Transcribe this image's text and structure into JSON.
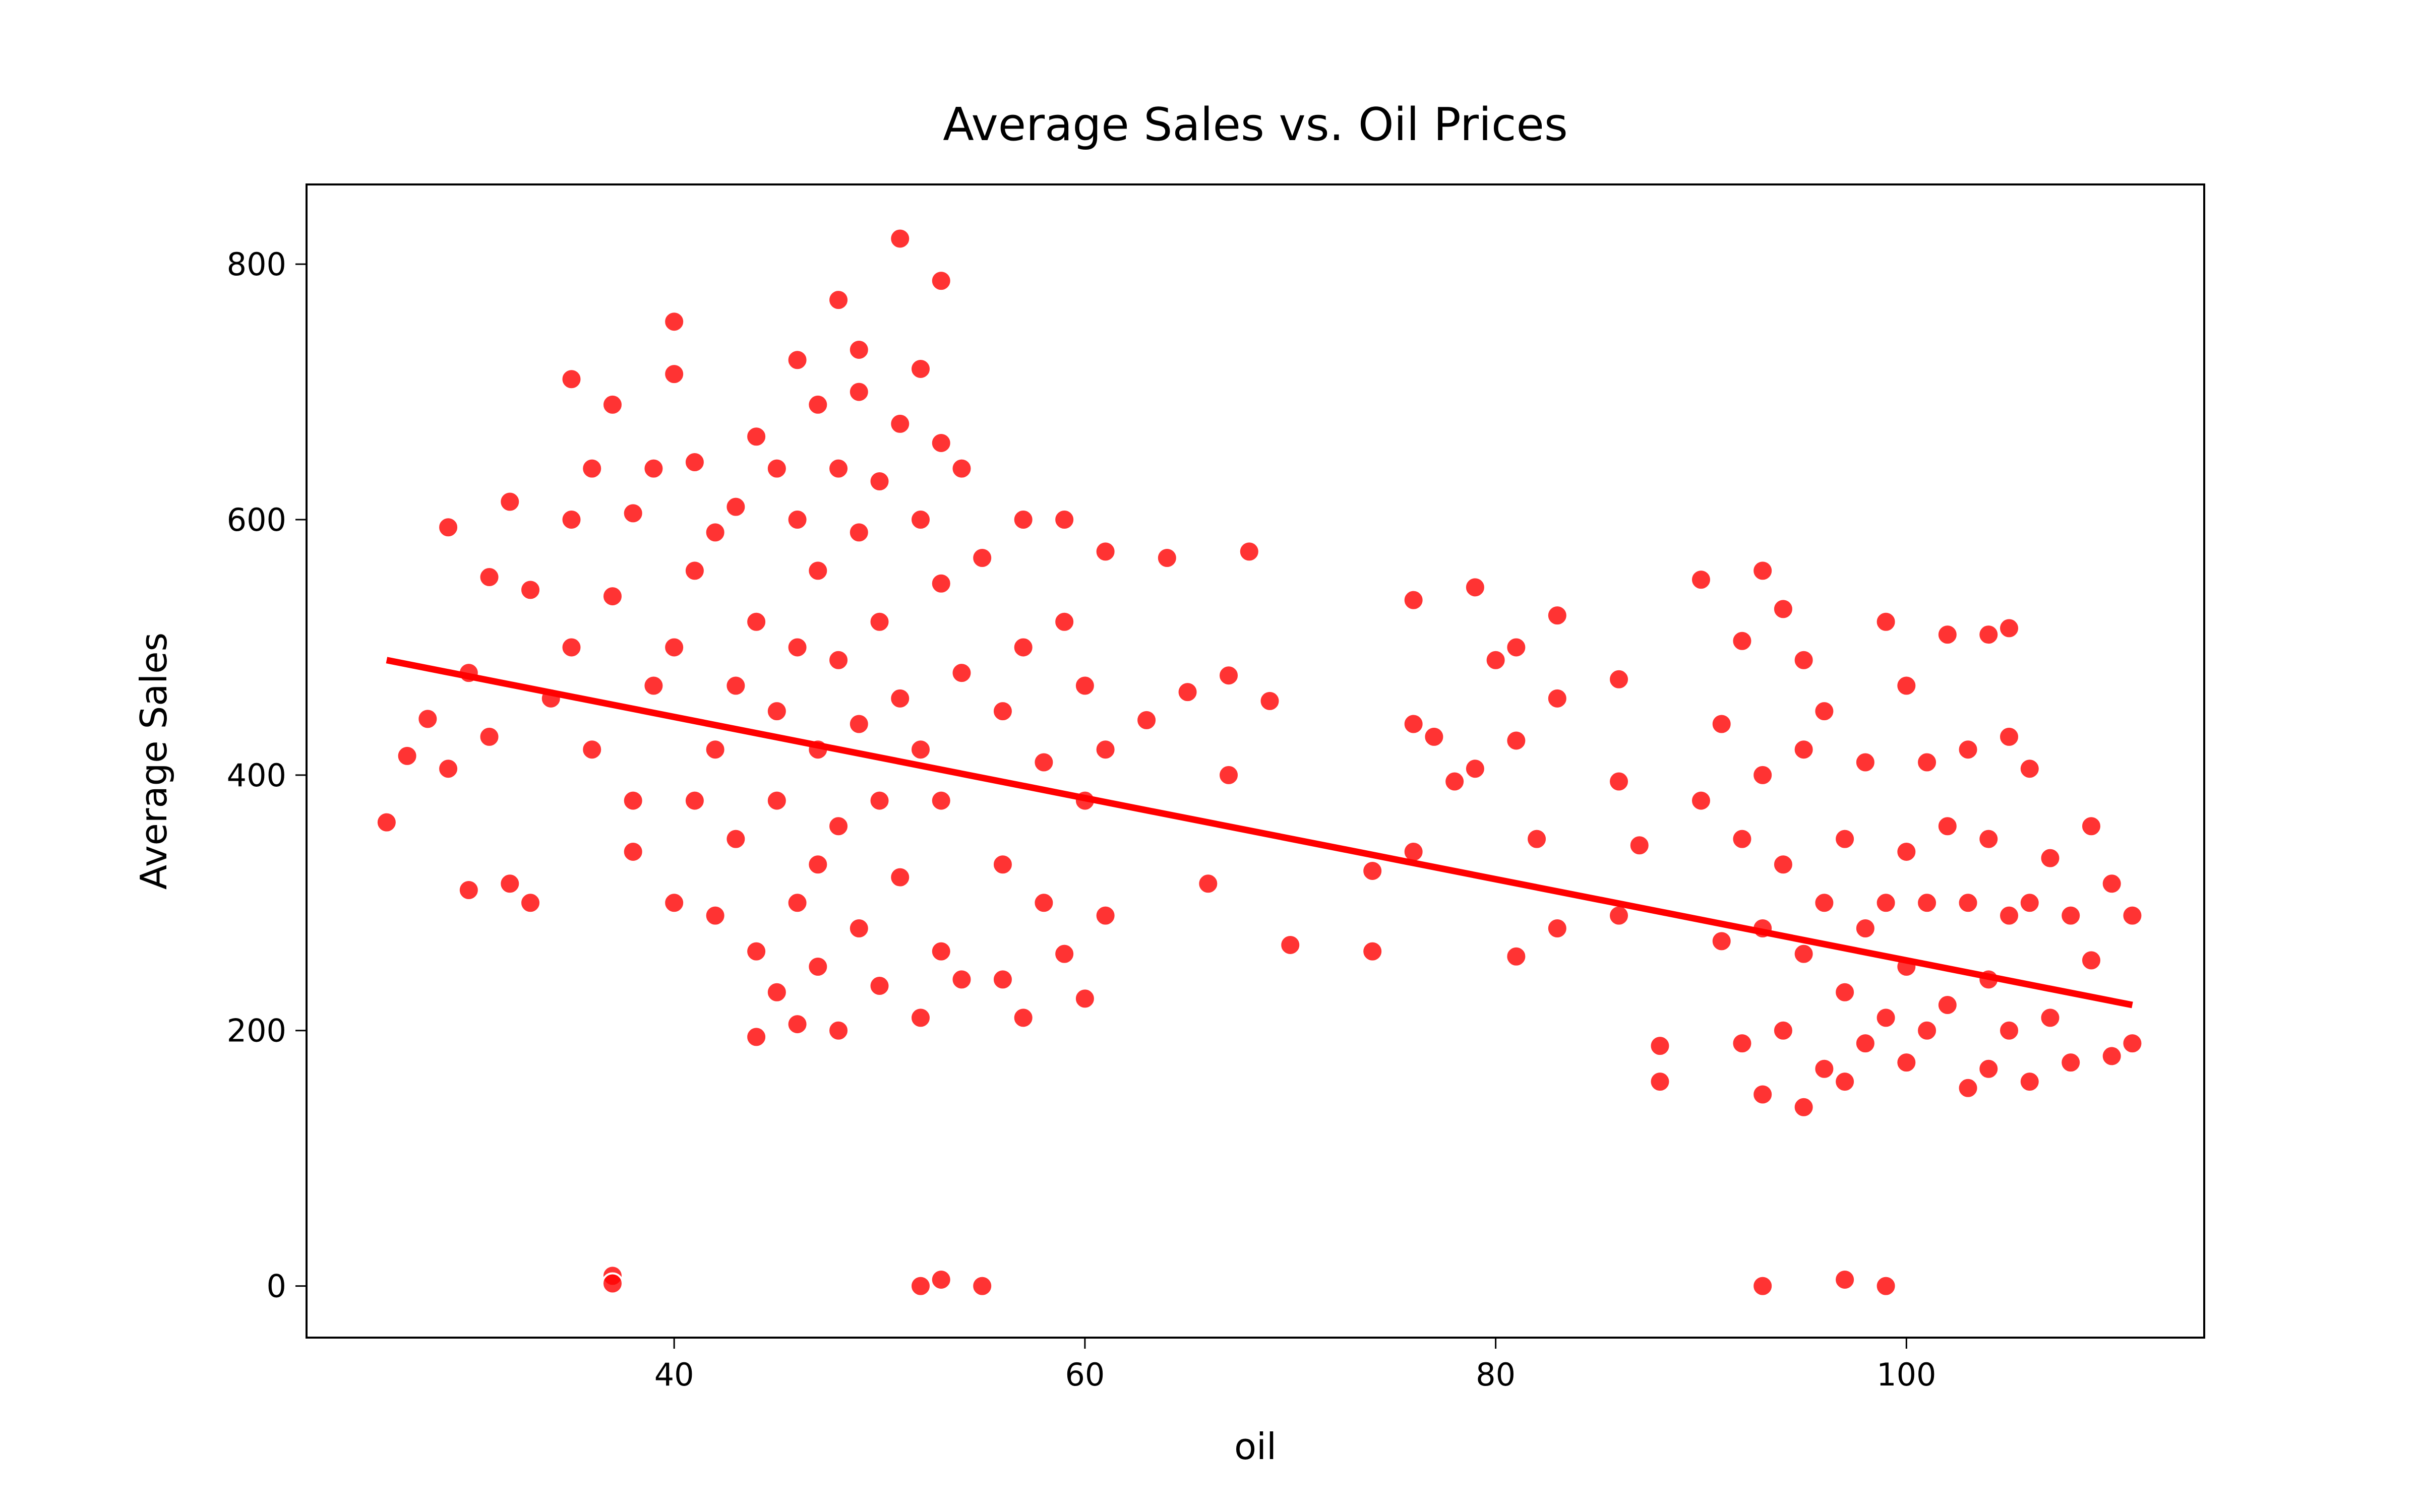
{
  "chart_data": {
    "type": "scatter",
    "title": "Average Sales vs. Oil Prices",
    "xlabel": "oil",
    "ylabel": "Average Sales",
    "xlim": [
      22.1,
      114.5
    ],
    "ylim": [
      -40.4,
      862.4
    ],
    "xticks": [
      40,
      60,
      80,
      100
    ],
    "yticks": [
      0,
      200,
      400,
      600,
      800
    ],
    "color": "#ff0000",
    "trendline": {
      "x": [
        26,
        111
      ],
      "y": [
        490,
        220
      ]
    },
    "x": [
      26,
      27,
      28,
      29,
      29,
      30,
      30,
      31,
      31,
      32,
      32,
      33,
      33,
      34,
      35,
      35,
      35,
      36,
      36,
      37,
      37,
      37,
      37,
      38,
      38,
      38,
      39,
      39,
      40,
      40,
      40,
      40,
      41,
      41,
      41,
      42,
      42,
      42,
      43,
      43,
      43,
      44,
      44,
      44,
      44,
      45,
      45,
      45,
      45,
      46,
      46,
      46,
      46,
      46,
      47,
      47,
      47,
      47,
      47,
      48,
      48,
      48,
      48,
      48,
      49,
      49,
      49,
      49,
      49,
      50,
      50,
      50,
      50,
      51,
      51,
      51,
      51,
      52,
      52,
      52,
      52,
      53,
      53,
      53,
      53,
      53,
      53,
      52,
      54,
      54,
      54,
      55,
      55,
      56,
      56,
      56,
      57,
      57,
      57,
      58,
      58,
      59,
      59,
      59,
      60,
      60,
      60,
      61,
      61,
      61,
      63,
      64,
      65,
      66,
      67,
      67,
      68,
      69,
      70,
      74,
      74,
      76,
      76,
      76,
      77,
      78,
      79,
      79,
      80,
      81,
      81,
      81,
      82,
      83,
      83,
      83,
      86,
      86,
      86,
      87,
      88,
      88,
      90,
      90,
      91,
      91,
      92,
      92,
      92,
      93,
      93,
      93,
      93,
      93,
      94,
      94,
      94,
      95,
      95,
      95,
      95,
      96,
      96,
      96,
      97,
      97,
      97,
      97,
      98,
      98,
      98,
      99,
      99,
      99,
      99,
      100,
      100,
      100,
      100,
      101,
      101,
      101,
      102,
      102,
      102,
      103,
      103,
      103,
      104,
      104,
      104,
      104,
      105,
      105,
      105,
      105,
      106,
      106,
      106,
      107,
      107,
      108,
      108,
      109,
      109,
      110,
      110,
      111,
      111
    ],
    "values": [
      363,
      415,
      444,
      594,
      405,
      310,
      480,
      555,
      430,
      315,
      614,
      545,
      300,
      460,
      710,
      600,
      500,
      640,
      420,
      690,
      540,
      8,
      2,
      605,
      380,
      340,
      640,
      470,
      755,
      714,
      500,
      300,
      645,
      560,
      380,
      590,
      420,
      290,
      610,
      470,
      350,
      665,
      520,
      262,
      195,
      640,
      450,
      380,
      230,
      725,
      600,
      500,
      300,
      205,
      690,
      560,
      420,
      330,
      250,
      772,
      640,
      490,
      360,
      200,
      733,
      700,
      590,
      440,
      280,
      630,
      520,
      380,
      235,
      820,
      675,
      460,
      320,
      718,
      600,
      420,
      210,
      787,
      660,
      550,
      380,
      262,
      5,
      0,
      640,
      480,
      240,
      570,
      0,
      450,
      330,
      240,
      600,
      500,
      210,
      410,
      300,
      600,
      520,
      260,
      470,
      380,
      225,
      575,
      420,
      290,
      443,
      570,
      465,
      315,
      478,
      400,
      575,
      458,
      267,
      262,
      325,
      537,
      440,
      340,
      430,
      395,
      547,
      405,
      490,
      500,
      258,
      427,
      350,
      525,
      460,
      280,
      475,
      395,
      290,
      345,
      160,
      188,
      380,
      553,
      270,
      440,
      505,
      350,
      190,
      560,
      400,
      280,
      150,
      0,
      530,
      330,
      200,
      490,
      420,
      260,
      140,
      450,
      300,
      170,
      350,
      230,
      160,
      5,
      410,
      280,
      190,
      520,
      300,
      210,
      0,
      470,
      340,
      250,
      175,
      410,
      300,
      200,
      510,
      360,
      220,
      420,
      300,
      155,
      510,
      350,
      240,
      170,
      515,
      430,
      290,
      200,
      405,
      300,
      160,
      335,
      210,
      290,
      175,
      360,
      255,
      315,
      180,
      290,
      190
    ]
  }
}
